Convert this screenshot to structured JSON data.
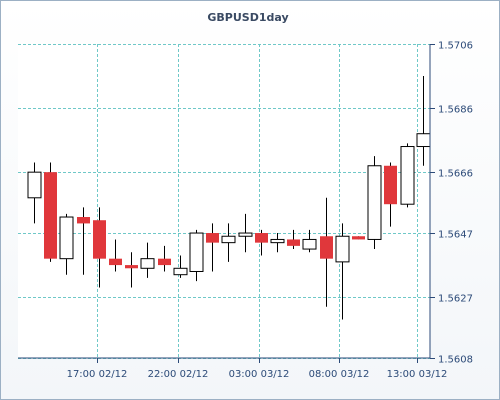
{
  "chart_data": {
    "type": "candlestick",
    "title": "GBPUSD1day",
    "ylim": [
      1.5608,
      1.5706
    ],
    "y_ticks": [
      "1.5706",
      "1.5686",
      "1.5666",
      "1.5647",
      "1.5627",
      "1.5608"
    ],
    "x_ticks": [
      "17:00 02/12",
      "22:00 02/12",
      "03:00 03/12",
      "08:00 03/12",
      "13:00 03/12"
    ],
    "grid": true,
    "colors": {
      "up": "#ffffff",
      "down": "#e0373b",
      "outline": "#000000",
      "grid": "#6fc8c8",
      "axis": "#2c4a78"
    },
    "candles": [
      {
        "open": 1.5658,
        "high": 1.5669,
        "low": 1.565,
        "close": 1.5666
      },
      {
        "open": 1.5666,
        "high": 1.5669,
        "low": 1.5638,
        "close": 1.5639
      },
      {
        "open": 1.5639,
        "high": 1.5653,
        "low": 1.5634,
        "close": 1.5652
      },
      {
        "open": 1.5652,
        "high": 1.5655,
        "low": 1.5634,
        "close": 1.565
      },
      {
        "open": 1.5651,
        "high": 1.5655,
        "low": 1.563,
        "close": 1.5639
      },
      {
        "open": 1.5639,
        "high": 1.5645,
        "low": 1.5635,
        "close": 1.5637
      },
      {
        "open": 1.5637,
        "high": 1.5641,
        "low": 1.563,
        "close": 1.5636
      },
      {
        "open": 1.5636,
        "high": 1.5644,
        "low": 1.5633,
        "close": 1.5639
      },
      {
        "open": 1.5639,
        "high": 1.5643,
        "low": 1.5635,
        "close": 1.5637
      },
      {
        "open": 1.5634,
        "high": 1.564,
        "low": 1.5633,
        "close": 1.5636
      },
      {
        "open": 1.5635,
        "high": 1.5648,
        "low": 1.5632,
        "close": 1.5647
      },
      {
        "open": 1.5647,
        "high": 1.565,
        "low": 1.5635,
        "close": 1.5644
      },
      {
        "open": 1.5644,
        "high": 1.565,
        "low": 1.5638,
        "close": 1.5646
      },
      {
        "open": 1.5646,
        "high": 1.5653,
        "low": 1.5641,
        "close": 1.5647
      },
      {
        "open": 1.5647,
        "high": 1.5648,
        "low": 1.564,
        "close": 1.5644
      },
      {
        "open": 1.5644,
        "high": 1.5647,
        "low": 1.5641,
        "close": 1.5645
      },
      {
        "open": 1.5645,
        "high": 1.5648,
        "low": 1.5642,
        "close": 1.5643
      },
      {
        "open": 1.5642,
        "high": 1.5648,
        "low": 1.5641,
        "close": 1.5645
      },
      {
        "open": 1.5646,
        "high": 1.5658,
        "low": 1.5624,
        "close": 1.5639
      },
      {
        "open": 1.5638,
        "high": 1.565,
        "low": 1.562,
        "close": 1.5646
      },
      {
        "open": 1.5646,
        "high": 1.5646,
        "low": 1.5645,
        "close": 1.5645
      },
      {
        "open": 1.5645,
        "high": 1.5671,
        "low": 1.5642,
        "close": 1.5668
      },
      {
        "open": 1.5668,
        "high": 1.5669,
        "low": 1.5649,
        "close": 1.5656
      },
      {
        "open": 1.5656,
        "high": 1.5675,
        "low": 1.5655,
        "close": 1.5674
      },
      {
        "open": 1.5674,
        "high": 1.5696,
        "low": 1.5668,
        "close": 1.5678
      }
    ]
  }
}
